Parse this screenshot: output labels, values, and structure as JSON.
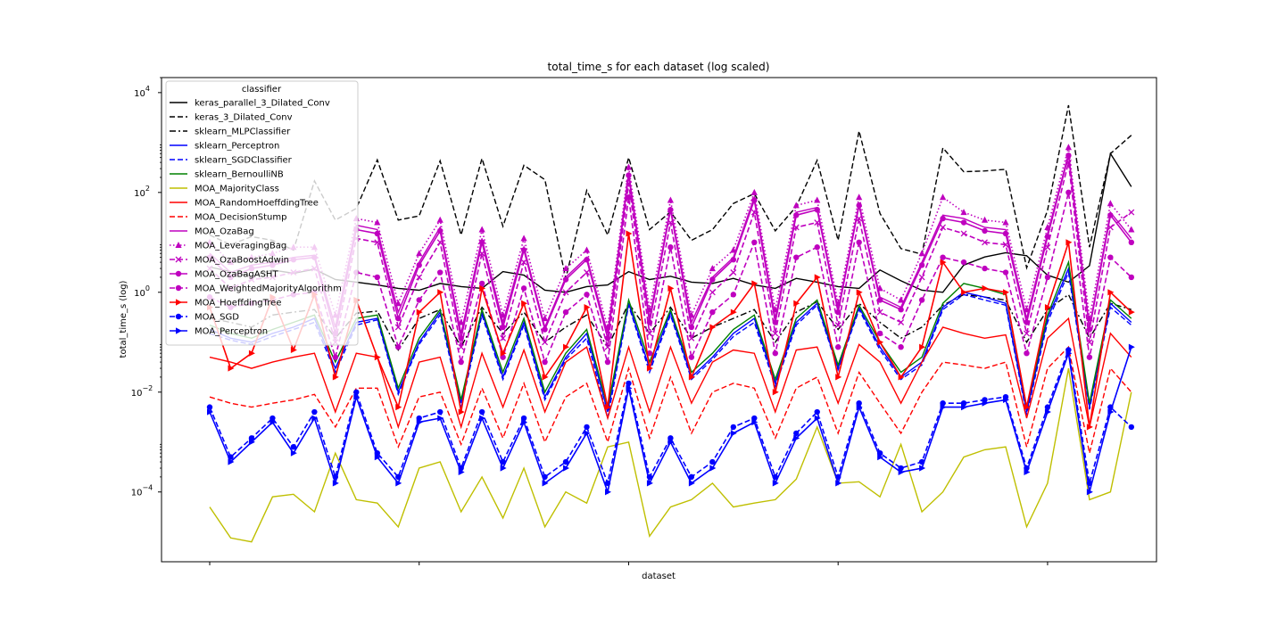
{
  "chart_data": {
    "type": "line",
    "title": "total_time_s for each dataset (log scaled)",
    "xlabel": "dataset",
    "ylabel": "total_time_s (log)",
    "yscale": "log",
    "ylim": [
      4e-06,
      20000
    ],
    "ytick_exponents": [
      "4",
      "2",
      "0",
      "−2",
      "−4"
    ],
    "ytick_values": [
      10000,
      100,
      1,
      0.01,
      0.0001
    ],
    "xlim": [
      -2.3,
      45.2
    ],
    "xtick_positions": [
      0,
      10,
      20,
      30,
      40
    ],
    "grid": false,
    "legend_position": "upper-left",
    "legend_title": "classifier",
    "n_datasets": 45,
    "series": [
      {
        "name": "keras_parallel_3_Dilated_Conv",
        "color": "#000000",
        "dash": "solid",
        "marker": "none",
        "values": [
          3.2,
          2.6,
          2.1,
          2.8,
          2.4,
          2.9,
          1.8,
          1.6,
          1.4,
          1.2,
          1.1,
          1.5,
          1.3,
          1.2,
          2.6,
          2.2,
          1.1,
          1.0,
          1.3,
          1.4,
          2.6,
          1.8,
          2.1,
          1.6,
          1.5,
          1.9,
          1.4,
          1.2,
          1.9,
          1.6,
          1.3,
          1.2,
          2.8,
          1.7,
          1.1,
          1.0,
          3.5,
          5.1,
          6.2,
          5.4,
          2.2,
          1.6,
          3.4,
          600,
          130
        ]
      },
      {
        "name": "keras_3_Dilated_Conv",
        "color": "#000000",
        "dash": "dashed",
        "marker": "none",
        "values": [
          14,
          9,
          13,
          11,
          7,
          170,
          28,
          48,
          450,
          28,
          34,
          430,
          14,
          480,
          21,
          350,
          180,
          1.9,
          110,
          14,
          500,
          18,
          41,
          11,
          18,
          60,
          95,
          17,
          52,
          440,
          11,
          1700,
          38,
          7.5,
          5.8,
          780,
          260,
          270,
          290,
          3.1,
          44,
          5600,
          8,
          600,
          1400
        ]
      },
      {
        "name": "sklearn_MLPClassifier",
        "color": "#000000",
        "dash": "dashdot",
        "marker": "none",
        "values": [
          0.3,
          0.25,
          0.2,
          0.35,
          0.4,
          0.45,
          0.12,
          0.38,
          0.42,
          0.07,
          0.3,
          0.45,
          0.08,
          0.5,
          0.15,
          0.4,
          0.1,
          0.2,
          0.35,
          0.08,
          0.6,
          0.15,
          0.5,
          0.12,
          0.2,
          0.3,
          0.45,
          0.1,
          0.4,
          0.65,
          0.18,
          0.6,
          0.25,
          0.12,
          0.2,
          0.55,
          0.9,
          0.8,
          0.7,
          0.1,
          0.45,
          0.9,
          0.12,
          0.6,
          0.45
        ]
      },
      {
        "name": "sklearn_Perceptron",
        "color": "#0000ff",
        "dash": "solid",
        "marker": "none",
        "values": [
          0.18,
          0.12,
          0.1,
          0.15,
          0.2,
          0.3,
          0.03,
          0.25,
          0.3,
          0.01,
          0.1,
          0.4,
          0.006,
          0.4,
          0.02,
          0.25,
          0.008,
          0.05,
          0.15,
          0.004,
          0.6,
          0.03,
          0.4,
          0.02,
          0.05,
          0.15,
          0.3,
          0.015,
          0.25,
          0.6,
          0.03,
          0.5,
          0.08,
          0.02,
          0.04,
          0.5,
          1.0,
          0.8,
          0.6,
          0.004,
          0.3,
          3.0,
          0.005,
          0.6,
          0.25
        ]
      },
      {
        "name": "sklearn_SGDClassifier",
        "color": "#0000ff",
        "dash": "dashed",
        "marker": "none",
        "values": [
          0.15,
          0.11,
          0.09,
          0.13,
          0.18,
          0.25,
          0.025,
          0.22,
          0.28,
          0.009,
          0.09,
          0.35,
          0.005,
          0.35,
          0.018,
          0.22,
          0.007,
          0.045,
          0.12,
          0.003,
          0.55,
          0.025,
          0.35,
          0.018,
          0.045,
          0.13,
          0.25,
          0.013,
          0.22,
          0.55,
          0.028,
          0.45,
          0.07,
          0.018,
          0.035,
          0.45,
          0.9,
          0.7,
          0.55,
          0.0035,
          0.25,
          2.5,
          0.0045,
          0.5,
          0.22
        ]
      },
      {
        "name": "sklearn_BernoulliNB",
        "color": "#008000",
        "dash": "solid",
        "marker": "none",
        "values": [
          0.22,
          0.15,
          0.12,
          0.18,
          0.25,
          0.35,
          0.04,
          0.3,
          0.35,
          0.012,
          0.12,
          0.45,
          0.007,
          0.45,
          0.025,
          0.3,
          0.01,
          0.06,
          0.18,
          0.005,
          0.7,
          0.04,
          0.45,
          0.025,
          0.06,
          0.18,
          0.35,
          0.018,
          0.3,
          0.7,
          0.035,
          0.55,
          0.1,
          0.025,
          0.05,
          0.6,
          1.5,
          1.2,
          0.9,
          0.005,
          0.35,
          4.0,
          0.006,
          0.7,
          0.3
        ]
      },
      {
        "name": "MOA_MajorityClass",
        "color": "#bfbf00",
        "dash": "solid",
        "marker": "none",
        "values": [
          5e-05,
          1.2e-05,
          1e-05,
          8e-05,
          9e-05,
          4e-05,
          0.0006,
          7e-05,
          6e-05,
          2e-05,
          0.0003,
          0.0004,
          4e-05,
          0.0002,
          3e-05,
          0.0003,
          2e-05,
          0.0001,
          6e-05,
          0.0008,
          0.001,
          1.3e-05,
          5e-05,
          7e-05,
          0.00015,
          5e-05,
          6e-05,
          7e-05,
          0.00018,
          0.002,
          0.00015,
          0.00016,
          8e-05,
          0.0009,
          4e-05,
          0.0001,
          0.0005,
          0.0007,
          0.0008,
          2e-05,
          0.00015,
          0.03,
          7e-05,
          0.0001,
          0.01
        ]
      },
      {
        "name": "MOA_RandomHoeffdingTree",
        "color": "#ff0000",
        "dash": "solid",
        "marker": "none",
        "values": [
          0.05,
          0.04,
          0.03,
          0.04,
          0.05,
          0.06,
          0.004,
          0.06,
          0.05,
          0.002,
          0.04,
          0.05,
          0.002,
          0.06,
          0.005,
          0.07,
          0.004,
          0.04,
          0.08,
          0.003,
          0.08,
          0.004,
          0.08,
          0.006,
          0.04,
          0.07,
          0.06,
          0.004,
          0.07,
          0.08,
          0.006,
          0.09,
          0.04,
          0.006,
          0.04,
          0.2,
          0.15,
          0.12,
          0.14,
          0.003,
          0.12,
          0.3,
          0.002,
          0.15,
          0.05
        ]
      },
      {
        "name": "MOA_DecisionStump",
        "color": "#ff0000",
        "dash": "dashed",
        "marker": "none",
        "values": [
          0.008,
          0.006,
          0.005,
          0.006,
          0.007,
          0.009,
          0.002,
          0.012,
          0.012,
          0.0008,
          0.008,
          0.01,
          0.0009,
          0.012,
          0.0012,
          0.015,
          0.001,
          0.008,
          0.015,
          0.001,
          0.03,
          0.0012,
          0.02,
          0.0015,
          0.01,
          0.015,
          0.012,
          0.0012,
          0.012,
          0.02,
          0.0015,
          0.025,
          0.006,
          0.0015,
          0.01,
          0.04,
          0.035,
          0.03,
          0.04,
          0.0008,
          0.03,
          0.08,
          0.0006,
          0.03,
          0.01
        ]
      },
      {
        "name": "MOA_OzaBag",
        "color": "#bf00bf",
        "dash": "solid",
        "marker": "none",
        "values": [
          6.0,
          2.5,
          3.5,
          4.0,
          5.0,
          5.5,
          0.2,
          22,
          18,
          0.4,
          4.0,
          20,
          0.15,
          12,
          0.25,
          8.0,
          0.2,
          2.0,
          5.0,
          0.15,
          250,
          0.3,
          50,
          0.25,
          2.0,
          5.0,
          80,
          0.3,
          40,
          50,
          0.45,
          60,
          0.8,
          0.5,
          4.0,
          35,
          30,
          20,
          18,
          0.3,
          15,
          600,
          0.2,
          40,
          12
        ]
      },
      {
        "name": "MOA_LeveragingBag",
        "color": "#bf00bf",
        "dash": "dotted",
        "marker": "^",
        "values": [
          10,
          4.0,
          5.0,
          6.0,
          8.0,
          8.0,
          0.35,
          30,
          25,
          0.6,
          6.0,
          28,
          0.25,
          18,
          0.35,
          12,
          0.3,
          3.0,
          7.0,
          0.2,
          320,
          0.45,
          70,
          0.35,
          3.0,
          7.0,
          100,
          0.45,
          55,
          70,
          0.6,
          80,
          1.2,
          0.7,
          6.0,
          80,
          40,
          28,
          25,
          0.45,
          20,
          800,
          0.3,
          60,
          18
        ]
      },
      {
        "name": "MOA_OzaBoostAdwin",
        "color": "#bf00bf",
        "dash": "dashed",
        "marker": "x",
        "values": [
          3.0,
          1.2,
          1.8,
          2.0,
          2.5,
          3.0,
          0.1,
          12,
          10,
          0.2,
          2.0,
          10,
          0.08,
          6.0,
          0.12,
          4.0,
          0.1,
          1.0,
          2.5,
          0.08,
          150,
          0.15,
          25,
          0.12,
          1.0,
          2.5,
          40,
          0.15,
          20,
          25,
          0.22,
          30,
          0.4,
          0.25,
          2.0,
          20,
          15,
          10,
          9.0,
          0.15,
          8.0,
          400,
          0.1,
          20,
          40
        ]
      },
      {
        "name": "MOA_OzaBagASHT",
        "color": "#bf00bf",
        "dash": "solid",
        "marker": "o",
        "values": [
          5.0,
          2.0,
          3.0,
          3.5,
          4.5,
          5.0,
          0.15,
          18,
          15,
          0.3,
          3.5,
          17,
          0.12,
          10,
          0.2,
          7.0,
          0.18,
          1.8,
          4.5,
          0.12,
          220,
          0.25,
          45,
          0.2,
          1.8,
          4.5,
          70,
          0.25,
          35,
          45,
          0.4,
          55,
          0.7,
          0.45,
          3.5,
          30,
          25,
          17,
          15,
          0.25,
          13,
          550,
          0.18,
          35,
          10
        ]
      },
      {
        "name": "MOA_WeightedMajorityAlgorithm",
        "color": "#bf00bf",
        "dash": "dashed",
        "marker": "o",
        "values": [
          0.8,
          0.5,
          0.6,
          0.7,
          0.9,
          1.0,
          0.05,
          2.5,
          2.0,
          0.08,
          0.7,
          2.5,
          0.04,
          1.5,
          0.05,
          1.2,
          0.04,
          0.4,
          0.9,
          0.04,
          80,
          0.06,
          8.0,
          0.05,
          0.4,
          0.9,
          10,
          0.06,
          5.0,
          8.0,
          0.08,
          10,
          0.15,
          0.08,
          0.7,
          5.0,
          4.0,
          3.0,
          2.5,
          0.06,
          2.0,
          100,
          0.05,
          5.0,
          2.0
        ]
      },
      {
        "name": "MOA_HoeffdingTree",
        "color": "#ff0000",
        "dash": "solid",
        "marker": ">",
        "values": [
          0.5,
          0.03,
          0.06,
          0.8,
          0.07,
          0.9,
          0.02,
          0.7,
          0.05,
          0.005,
          0.4,
          1.0,
          0.004,
          1.2,
          0.06,
          0.6,
          0.02,
          0.08,
          0.5,
          0.005,
          15,
          0.03,
          1.2,
          0.02,
          0.2,
          0.4,
          1.5,
          0.01,
          0.6,
          2.0,
          0.02,
          1.0,
          0.1,
          0.02,
          0.08,
          4.0,
          1.0,
          1.2,
          1.0,
          0.005,
          0.5,
          10,
          0.002,
          1.0,
          0.4
        ]
      },
      {
        "name": "MOA_SGD",
        "color": "#0000ff",
        "dash": "dashed",
        "marker": "o",
        "values": [
          0.005,
          0.0005,
          0.0012,
          0.003,
          0.0008,
          0.004,
          0.0002,
          0.01,
          0.0006,
          0.0002,
          0.003,
          0.004,
          0.0003,
          0.004,
          0.0004,
          0.003,
          0.0002,
          0.0004,
          0.002,
          0.00015,
          0.015,
          0.0002,
          0.0012,
          0.0002,
          0.0004,
          0.002,
          0.003,
          0.0002,
          0.0015,
          0.004,
          0.0002,
          0.006,
          0.0006,
          0.0003,
          0.0004,
          0.006,
          0.006,
          0.007,
          0.008,
          0.0003,
          0.005,
          0.07,
          0.00015,
          0.005,
          0.002
        ]
      },
      {
        "name": "MOA_Perceptron",
        "color": "#0000ff",
        "dash": "solid",
        "marker": ">",
        "values": [
          0.004,
          0.0004,
          0.001,
          0.0025,
          0.0006,
          0.003,
          0.00015,
          0.008,
          0.0005,
          0.00015,
          0.0025,
          0.003,
          0.00025,
          0.003,
          0.0003,
          0.0025,
          0.00015,
          0.0003,
          0.0015,
          0.0001,
          0.012,
          0.00015,
          0.001,
          0.00015,
          0.0003,
          0.0015,
          0.0025,
          0.00015,
          0.0012,
          0.003,
          0.00015,
          0.005,
          0.0005,
          0.00025,
          0.0003,
          0.005,
          0.005,
          0.006,
          0.007,
          0.00025,
          0.004,
          0.06,
          0.0001,
          0.004,
          0.08
        ]
      }
    ]
  }
}
